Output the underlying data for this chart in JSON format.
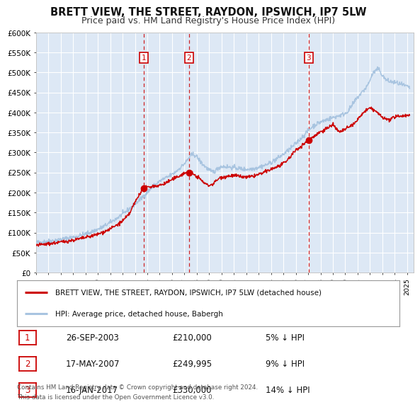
{
  "title": "BRETT VIEW, THE STREET, RAYDON, IPSWICH, IP7 5LW",
  "subtitle": "Price paid vs. HM Land Registry's House Price Index (HPI)",
  "title_fontsize": 10.5,
  "subtitle_fontsize": 9,
  "background_color": "#ffffff",
  "plot_bg_color": "#dde8f5",
  "grid_color": "#ffffff",
  "ylim": [
    0,
    600000
  ],
  "yticks": [
    0,
    50000,
    100000,
    150000,
    200000,
    250000,
    300000,
    350000,
    400000,
    450000,
    500000,
    550000,
    600000
  ],
  "ytick_labels": [
    "£0",
    "£50K",
    "£100K",
    "£150K",
    "£200K",
    "£250K",
    "£300K",
    "£350K",
    "£400K",
    "£450K",
    "£500K",
    "£550K",
    "£600K"
  ],
  "xmin": 1995.0,
  "xmax": 2025.5,
  "xticks": [
    1995,
    1996,
    1997,
    1998,
    1999,
    2000,
    2001,
    2002,
    2003,
    2004,
    2005,
    2006,
    2007,
    2008,
    2009,
    2010,
    2011,
    2012,
    2013,
    2014,
    2015,
    2016,
    2017,
    2018,
    2019,
    2020,
    2021,
    2022,
    2023,
    2024,
    2025
  ],
  "purchase_color": "#cc0000",
  "hpi_color": "#a8c4e0",
  "purchase_dot_color": "#cc0000",
  "vline_color": "#cc0000",
  "label_box_color": "#cc0000",
  "transactions": [
    {
      "num": 1,
      "date_str": "26-SEP-2003",
      "date_x": 2003.73,
      "price": 210000
    },
    {
      "num": 2,
      "date_str": "17-MAY-2007",
      "date_x": 2007.37,
      "price": 249995
    },
    {
      "num": 3,
      "date_str": "16-JAN-2017",
      "date_x": 2017.04,
      "price": 330000
    }
  ],
  "legend_label1": "BRETT VIEW, THE STREET, RAYDON, IPSWICH, IP7 5LW (detached house)",
  "legend_label2": "HPI: Average price, detached house, Babergh",
  "footer1": "Contains HM Land Registry data © Crown copyright and database right 2024.",
  "footer2": "This data is licensed under the Open Government Licence v3.0.",
  "table_rows": [
    {
      "num": 1,
      "date": "26-SEP-2003",
      "price": "£210,000",
      "pct": "5% ↓ HPI"
    },
    {
      "num": 2,
      "date": "17-MAY-2007",
      "price": "£249,995",
      "pct": "9% ↓ HPI"
    },
    {
      "num": 3,
      "date": "16-JAN-2017",
      "price": "£330,000",
      "pct": "14% ↓ HPI"
    }
  ]
}
